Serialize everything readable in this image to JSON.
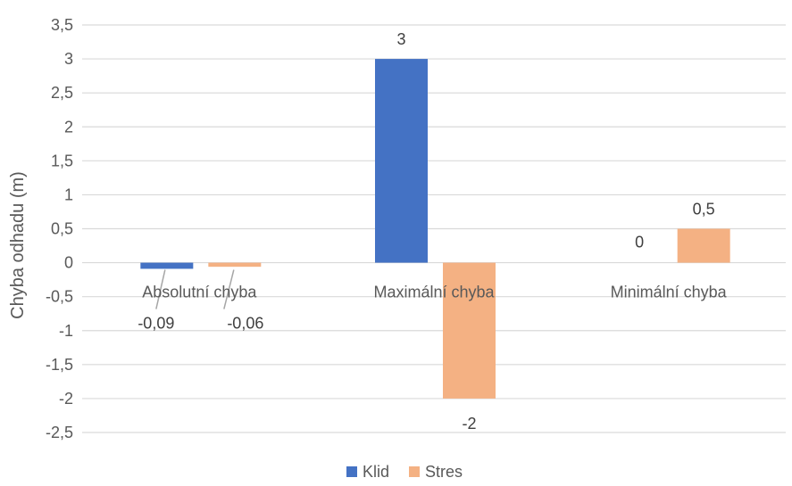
{
  "chart_data": {
    "type": "bar",
    "categories": [
      "Absolutní chyba",
      "Maximální chyba",
      "Minimální chyba"
    ],
    "series": [
      {
        "name": "Klid",
        "values": [
          -0.09,
          3,
          0
        ],
        "labels": [
          "-0,09",
          "3",
          "0"
        ],
        "color": "#4472C4"
      },
      {
        "name": "Stres",
        "values": [
          -0.06,
          -2,
          0.5
        ],
        "labels": [
          "-0,06",
          "-2",
          "0,5"
        ],
        "color": "#F4B183"
      }
    ],
    "ylabel": "Chyba odhadu (m)",
    "ylim": [
      -2.5,
      3.5
    ],
    "yticks": [
      3.5,
      3,
      2.5,
      2,
      1.5,
      1,
      0.5,
      0,
      -0.5,
      -1,
      -1.5,
      -2,
      -2.5
    ],
    "ytick_labels": [
      "3,5",
      "3",
      "2,5",
      "2",
      "1,5",
      "1",
      "0,5",
      "0",
      "-0,5",
      "-1",
      "-1,5",
      "-2",
      "-2,5"
    ],
    "grid": true,
    "gridline_color": "#d9d9d9",
    "legend_position": "bottom"
  }
}
